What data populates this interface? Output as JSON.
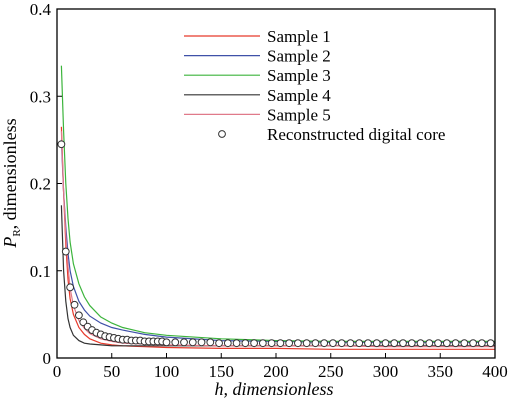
{
  "chart_data": {
    "type": "line",
    "xlabel": "h, dimensionless",
    "ylabel_main": "P",
    "ylabel_sub": "R",
    "ylabel_rest": ", dimensionless",
    "xlim": [
      0,
      400
    ],
    "ylim": [
      0,
      0.4
    ],
    "xticks": [
      0,
      50,
      100,
      150,
      200,
      250,
      300,
      350,
      400
    ],
    "yticks": [
      0,
      0.1,
      0.2,
      0.3,
      0.4
    ],
    "xtick_labels": [
      "0",
      "50",
      "100",
      "150",
      "200",
      "250",
      "300",
      "350",
      "400"
    ],
    "ytick_labels": [
      "0",
      "0.1",
      "0.2",
      "0.3",
      "0.4"
    ],
    "grid": false,
    "legend_position": "top-right",
    "series": [
      {
        "name": "Sample 1",
        "color": "#e8392a",
        "style": "line",
        "x": [
          4,
          6,
          8,
          10,
          12,
          15,
          20,
          25,
          30,
          40,
          50,
          60,
          80,
          100,
          150,
          200,
          250,
          300,
          350,
          400
        ],
        "y": [
          0.265,
          0.19,
          0.13,
          0.09,
          0.068,
          0.05,
          0.035,
          0.027,
          0.022,
          0.017,
          0.015,
          0.014,
          0.013,
          0.012,
          0.011,
          0.011,
          0.01,
          0.01,
          0.01,
          0.01
        ]
      },
      {
        "name": "Sample 2",
        "color": "#3f51a8",
        "style": "line",
        "x": [
          4,
          6,
          8,
          10,
          12,
          15,
          20,
          25,
          30,
          40,
          50,
          60,
          80,
          100,
          150,
          200,
          250,
          300,
          350,
          400
        ],
        "y": [
          0.25,
          0.19,
          0.15,
          0.12,
          0.1,
          0.082,
          0.065,
          0.055,
          0.048,
          0.04,
          0.035,
          0.032,
          0.027,
          0.024,
          0.02,
          0.019,
          0.018,
          0.018,
          0.018,
          0.018
        ]
      },
      {
        "name": "Sample 3",
        "color": "#3cb43c",
        "style": "line",
        "x": [
          4,
          6,
          8,
          10,
          12,
          15,
          20,
          25,
          30,
          40,
          50,
          60,
          80,
          100,
          150,
          200,
          250,
          300,
          350,
          400
        ],
        "y": [
          0.335,
          0.26,
          0.2,
          0.16,
          0.133,
          0.108,
          0.085,
          0.07,
          0.06,
          0.047,
          0.04,
          0.035,
          0.029,
          0.026,
          0.022,
          0.02,
          0.019,
          0.019,
          0.019,
          0.019
        ]
      },
      {
        "name": "Sample 4",
        "color": "#333333",
        "style": "line",
        "x": [
          4,
          6,
          8,
          10,
          12,
          15,
          20,
          25,
          30,
          40,
          50,
          60,
          80,
          100,
          150,
          200,
          250,
          300,
          350,
          400
        ],
        "y": [
          0.175,
          0.1,
          0.065,
          0.045,
          0.035,
          0.026,
          0.02,
          0.017,
          0.016,
          0.015,
          0.014,
          0.014,
          0.014,
          0.014,
          0.014,
          0.014,
          0.014,
          0.014,
          0.014,
          0.014
        ]
      },
      {
        "name": "Sample 5",
        "color": "#e07a8a",
        "style": "line",
        "x": [
          4,
          6,
          8,
          10,
          12,
          15,
          20,
          25,
          30,
          40,
          50,
          60,
          80,
          100,
          150,
          200,
          250,
          300,
          350,
          400
        ],
        "y": [
          0.26,
          0.19,
          0.14,
          0.105,
          0.08,
          0.06,
          0.043,
          0.034,
          0.028,
          0.022,
          0.019,
          0.017,
          0.016,
          0.015,
          0.014,
          0.014,
          0.014,
          0.013,
          0.013,
          0.013
        ]
      },
      {
        "name": "Reconstructed digital core",
        "color": "#333333",
        "style": "marker",
        "x": [
          4,
          8,
          12,
          16,
          20,
          24,
          28,
          32,
          36,
          40,
          44,
          48,
          52,
          56,
          60,
          64,
          68,
          72,
          76,
          80,
          84,
          88,
          92,
          96,
          100,
          108,
          116,
          124,
          132,
          140,
          148,
          156,
          164,
          172,
          180,
          188,
          196,
          204,
          212,
          220,
          228,
          236,
          244,
          252,
          260,
          268,
          276,
          284,
          292,
          300,
          308,
          316,
          324,
          332,
          340,
          348,
          356,
          364,
          372,
          380,
          388,
          396
        ],
        "y": [
          0.245,
          0.122,
          0.081,
          0.061,
          0.049,
          0.041,
          0.036,
          0.032,
          0.029,
          0.027,
          0.025,
          0.024,
          0.023,
          0.022,
          0.021,
          0.021,
          0.02,
          0.02,
          0.02,
          0.019,
          0.019,
          0.019,
          0.019,
          0.019,
          0.018,
          0.018,
          0.018,
          0.018,
          0.018,
          0.018,
          0.017,
          0.017,
          0.017,
          0.017,
          0.017,
          0.017,
          0.017,
          0.017,
          0.017,
          0.017,
          0.017,
          0.017,
          0.017,
          0.017,
          0.017,
          0.017,
          0.017,
          0.017,
          0.017,
          0.017,
          0.017,
          0.017,
          0.017,
          0.017,
          0.017,
          0.017,
          0.017,
          0.017,
          0.017,
          0.017,
          0.017,
          0.017
        ]
      }
    ]
  }
}
